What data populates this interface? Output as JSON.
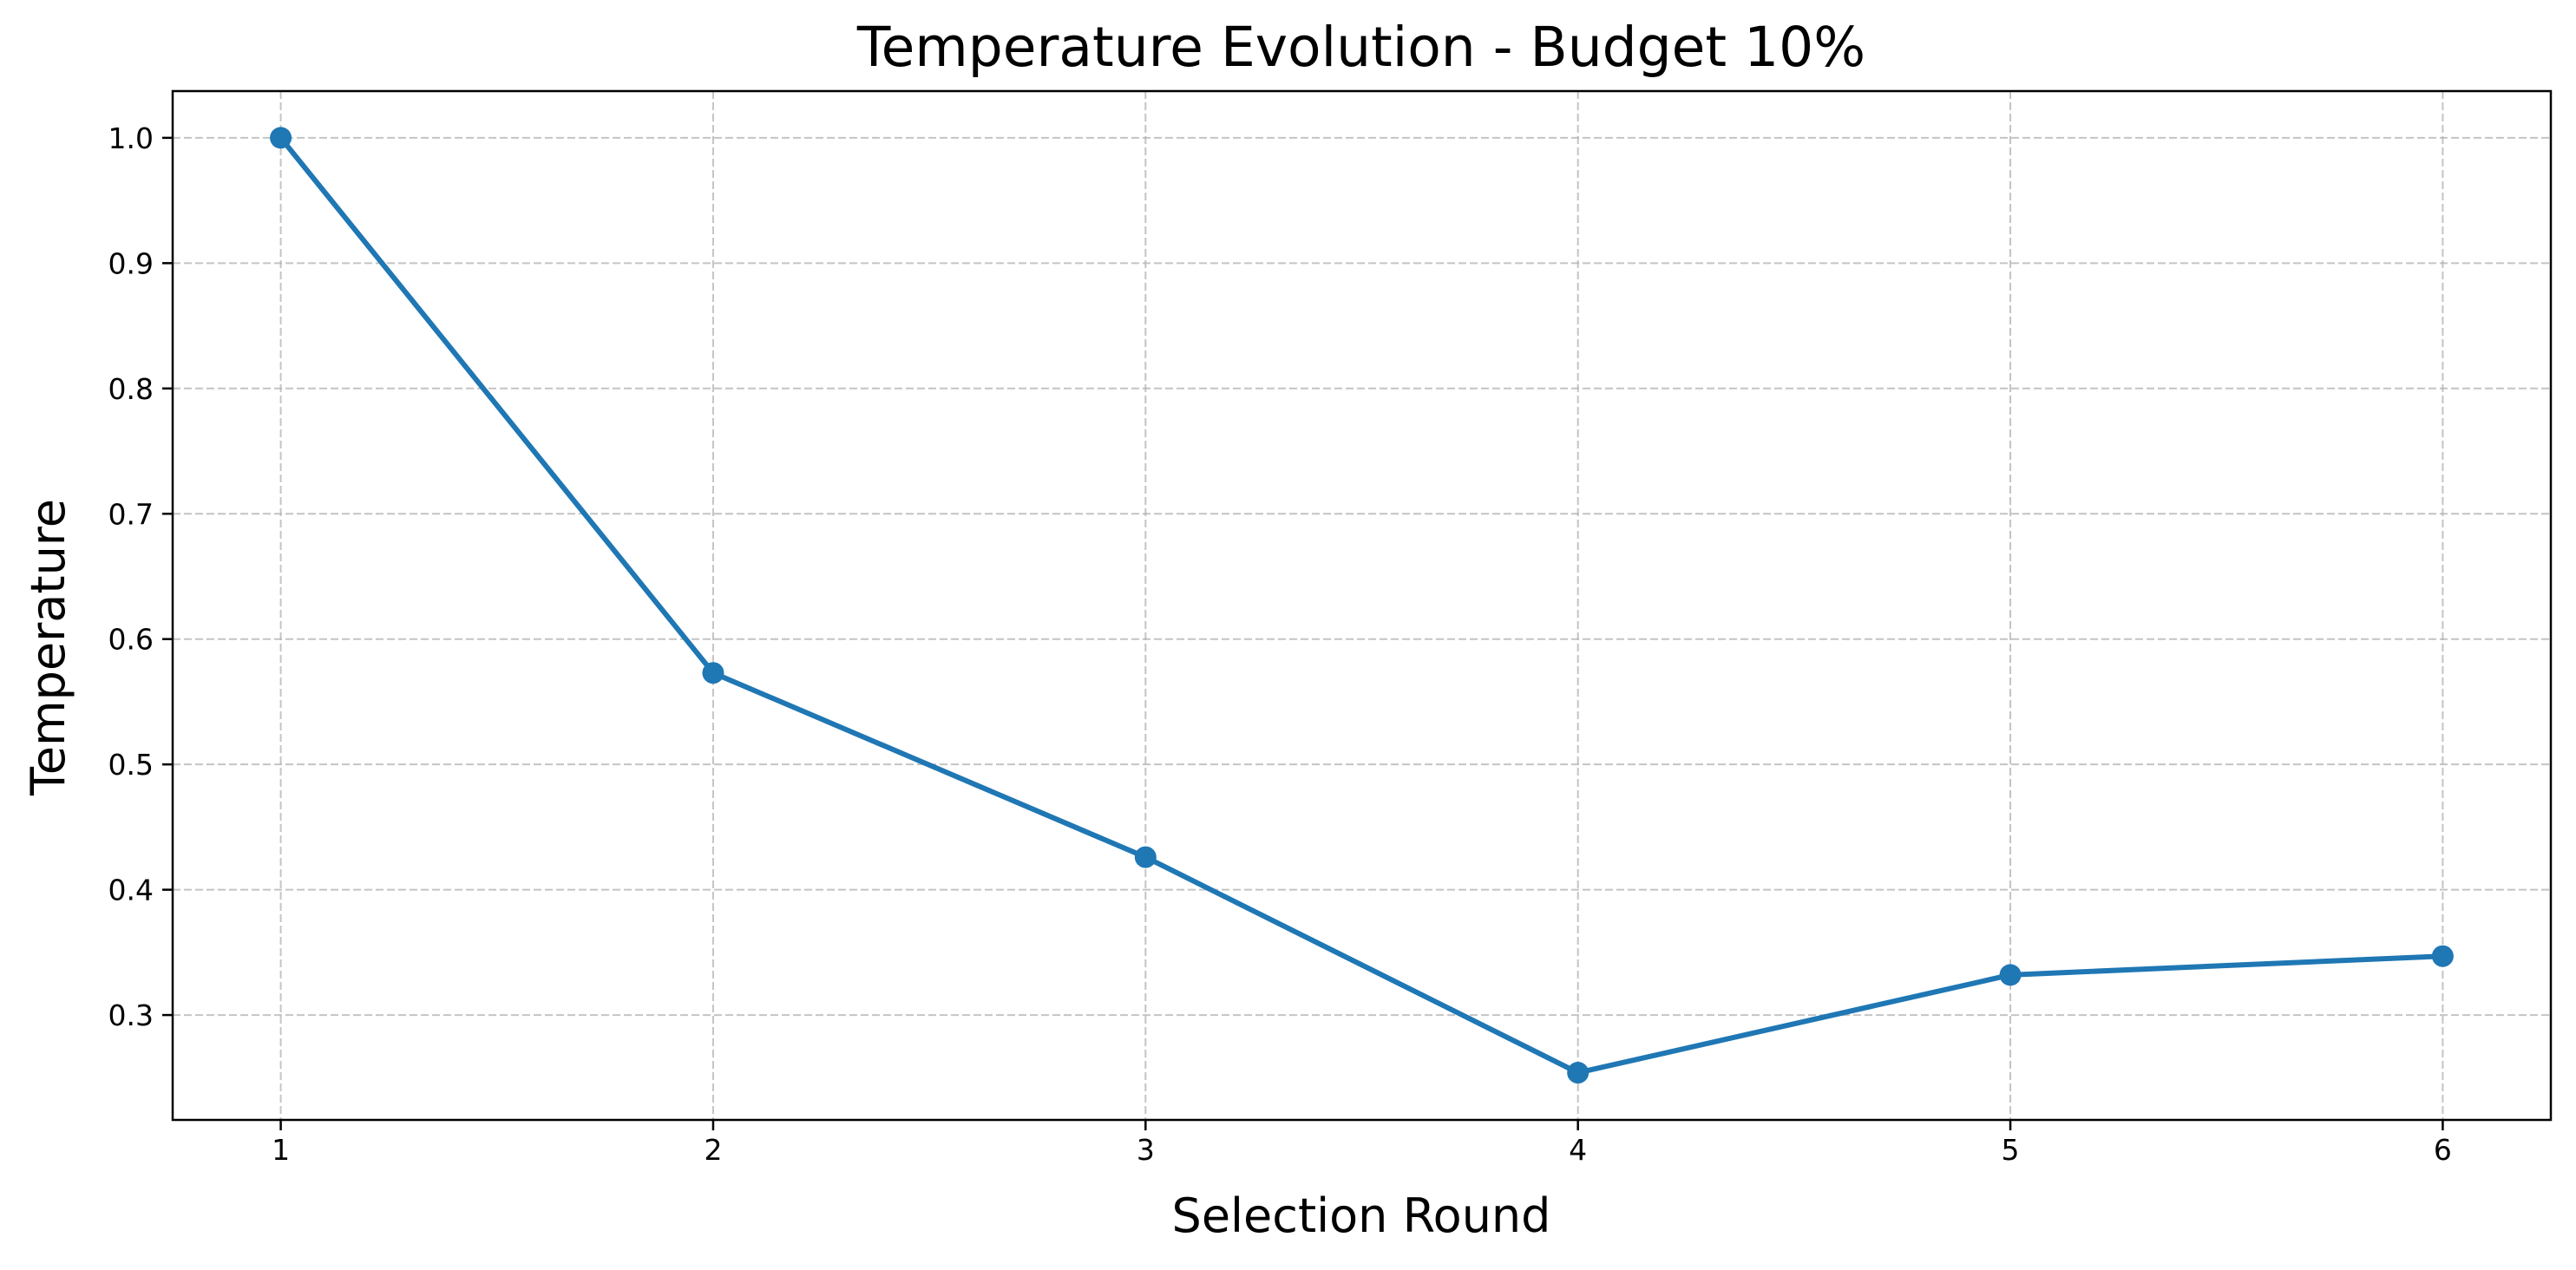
{
  "chart_data": {
    "type": "line",
    "title": "Temperature Evolution - Budget 10%",
    "xlabel": "Selection Round",
    "ylabel": "Temperature",
    "x": [
      1,
      2,
      3,
      4,
      5,
      6
    ],
    "series": [
      {
        "values": [
          1.0,
          0.573,
          0.426,
          0.254,
          0.332,
          0.347
        ],
        "color": "#1f77b4",
        "marker": "circle"
      }
    ],
    "xticks": [
      "1",
      "2",
      "3",
      "4",
      "5",
      "6"
    ],
    "yticks": [
      "0.3",
      "0.4",
      "0.5",
      "0.6",
      "0.7",
      "0.8",
      "0.9",
      "1.0"
    ],
    "xlim": [
      0.75,
      6.25
    ],
    "ylim": [
      0.2163,
      1.0373
    ],
    "grid": true,
    "grid_style": "dashed",
    "legend": false
  }
}
